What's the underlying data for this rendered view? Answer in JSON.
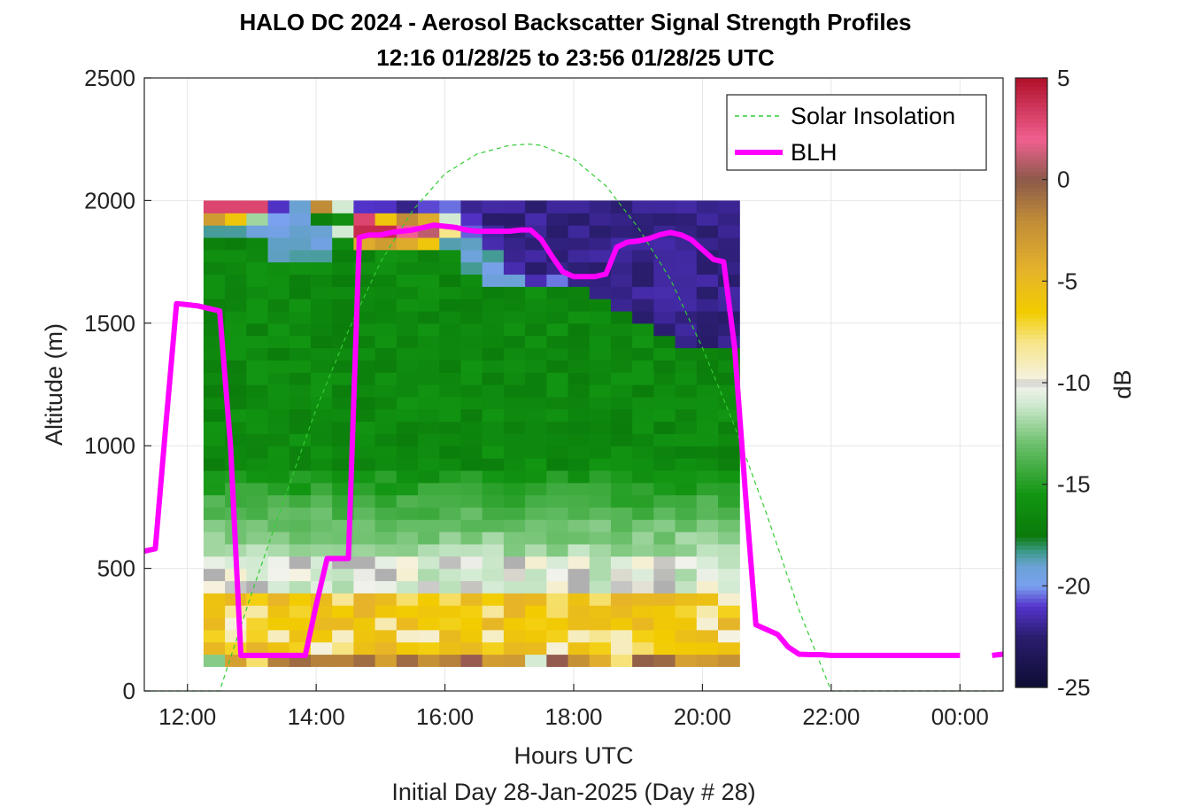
{
  "chart_data": {
    "type": "heatmap",
    "title": "HALO DC 2024 - Aerosol Backscatter Signal Strength Profiles",
    "subtitle": "12:16 01/28/25 to 23:56 01/28/25  UTC",
    "xlabel": "Hours UTC",
    "xlabel2": "Initial Day 28-Jan-2025 (Day # 28)",
    "ylabel": "Altitude (m)",
    "xlim": [
      11.33,
      24.67
    ],
    "ylim": [
      0,
      2500
    ],
    "x_ticks": [
      12,
      14,
      16,
      18,
      20,
      22,
      24
    ],
    "x_tick_labels": [
      "12:00",
      "14:00",
      "16:00",
      "18:00",
      "20:00",
      "22:00",
      "00:00"
    ],
    "y_ticks": [
      0,
      500,
      1000,
      1500,
      2000,
      2500
    ],
    "y_tick_labels": [
      "0",
      "500",
      "1000",
      "1500",
      "2000",
      "2500"
    ],
    "colorbar": {
      "label": "dB",
      "clim": [
        -25,
        5
      ],
      "ticks": [
        5,
        0,
        -5,
        -10,
        -15,
        -20,
        -25
      ],
      "tick_labels": [
        "5",
        "0",
        "-5",
        "-10",
        "-15",
        "-20",
        "-25"
      ],
      "stops": [
        {
          "v": -25,
          "c": "#0d0d33"
        },
        {
          "v": -22.5,
          "c": "#2a1d6e"
        },
        {
          "v": -21,
          "c": "#5533cc"
        },
        {
          "v": -20,
          "c": "#7aa0f0"
        },
        {
          "v": -19,
          "c": "#6aa2d4"
        },
        {
          "v": -18.3,
          "c": "#3d9a8a"
        },
        {
          "v": -17.5,
          "c": "#0a7a0a"
        },
        {
          "v": -15.5,
          "c": "#129612"
        },
        {
          "v": -13,
          "c": "#6cc06c"
        },
        {
          "v": -11,
          "c": "#d2ead2"
        },
        {
          "v": -10.15,
          "c": "#f2f2ec"
        },
        {
          "v": -10,
          "c": "#b0b0b0"
        },
        {
          "v": -9.85,
          "c": "#f5f2e2"
        },
        {
          "v": -8,
          "c": "#f7e58a"
        },
        {
          "v": -6.5,
          "c": "#f2cc00"
        },
        {
          "v": -4.5,
          "c": "#e6b32a"
        },
        {
          "v": -2,
          "c": "#c08c38"
        },
        {
          "v": 0,
          "c": "#8c5a4a"
        },
        {
          "v": 2,
          "c": "#f06090"
        },
        {
          "v": 5,
          "c": "#b0102a"
        }
      ]
    },
    "heatmap": {
      "x_start": 12.25,
      "x_step": 0.333,
      "n_cols": 25,
      "y_start": 100,
      "y_step": 50,
      "n_rows": 38,
      "value_description": "backscatter signal strength (dB)",
      "bottom_layer_top_m": [
        1850,
        1850,
        1850,
        1750,
        1750,
        1750,
        1850,
        1850,
        1850,
        1850,
        1850,
        1800,
        1700,
        1650,
        1650,
        1650,
        1650,
        1650,
        1600,
        1550,
        1500,
        1450,
        1400,
        1400,
        1400
      ],
      "green_top_m": [
        1900,
        1900,
        1950,
        1950,
        2000,
        1950,
        1850,
        1900,
        1900,
        1900,
        1950,
        1950,
        1850,
        1800,
        1700,
        1600,
        1650,
        1600,
        1500,
        1400,
        1400,
        1250,
        1200,
        1200,
        1200
      ],
      "aerosol_cap": [
        {
          "col": 0,
          "bottom_m": 1900,
          "top_m": 2050,
          "values_db": [
            -3,
            3,
            2
          ]
        },
        {
          "col": 1,
          "bottom_m": 1900,
          "top_m": 2000,
          "values_db": [
            -6,
            3
          ]
        },
        {
          "col": 2,
          "bottom_m": 1900,
          "top_m": 2050,
          "values_db": [
            -12,
            3,
            -2
          ]
        },
        {
          "col": 5,
          "bottom_m": 1850,
          "top_m": 2000,
          "values_db": [
            -19,
            -17,
            -2
          ]
        },
        {
          "col": 6,
          "bottom_m": 1850,
          "top_m": 2000,
          "values_db": [
            -11,
            -16,
            -11
          ]
        },
        {
          "col": 7,
          "bottom_m": 1800,
          "top_m": 1950,
          "values_db": [
            -4,
            4,
            3
          ]
        },
        {
          "col": 8,
          "bottom_m": 1800,
          "top_m": 1950,
          "values_db": [
            -3,
            4,
            -6
          ]
        },
        {
          "col": 9,
          "bottom_m": 1800,
          "top_m": 1950,
          "values_db": [
            -4,
            2,
            -2
          ]
        },
        {
          "col": 10,
          "bottom_m": 1800,
          "top_m": 1950,
          "values_db": [
            -6,
            1,
            -4
          ]
        },
        {
          "col": 11,
          "bottom_m": 1850,
          "top_m": 1950,
          "values_db": [
            -8,
            -11
          ]
        }
      ]
    },
    "series": [
      {
        "name": "Solar Insolation",
        "style": "dashed",
        "color": "#33cc33",
        "x": [
          11.33,
          12.5,
          13,
          13.5,
          14,
          14.5,
          15,
          15.5,
          16,
          16.5,
          17,
          17.3,
          17.5,
          18,
          18.5,
          19,
          19.5,
          20,
          20.5,
          21,
          21.5,
          22,
          22.3,
          24.67
        ],
        "y": [
          0,
          0,
          400,
          780,
          1150,
          1470,
          1750,
          1960,
          2110,
          2190,
          2225,
          2230,
          2225,
          2170,
          2060,
          1890,
          1680,
          1400,
          1080,
          720,
          330,
          0,
          0,
          0
        ]
      },
      {
        "name": "BLH",
        "style": "solid",
        "color": "#ff00ff",
        "segments": [
          {
            "x": [
              11.33,
              11.5,
              11.67,
              11.83,
              12.0,
              12.17,
              12.33,
              12.5,
              12.67,
              12.83,
              13.0,
              13.17,
              13.33,
              13.5,
              13.67,
              13.83,
              14.0,
              14.17,
              14.33,
              14.5,
              14.67,
              14.83,
              15.0,
              15.17,
              15.33,
              15.5,
              15.67,
              15.83,
              16.0,
              16.17,
              16.33,
              16.5,
              16.67,
              16.83,
              17.0,
              17.17,
              17.33,
              17.5,
              17.67,
              17.83,
              18.0,
              18.17,
              18.33,
              18.5,
              18.67,
              18.83,
              19.0,
              19.17,
              19.33,
              19.5,
              19.67,
              19.83,
              20.0,
              20.17,
              20.33,
              20.5,
              20.67,
              20.83,
              21.0,
              21.17,
              21.33,
              21.5,
              21.67,
              21.83,
              22.0,
              22.17,
              22.33,
              22.5,
              22.67,
              22.83,
              23.0,
              23.17,
              23.33,
              23.5,
              23.67,
              23.83,
              24.0
            ],
            "y": [
              570,
              580,
              1100,
              1580,
              1575,
              1570,
              1560,
              1550,
              1000,
              145,
              145,
              145,
              145,
              145,
              145,
              145,
              350,
              540,
              540,
              540,
              1850,
              1860,
              1860,
              1870,
              1875,
              1880,
              1890,
              1900,
              1895,
              1890,
              1880,
              1875,
              1875,
              1875,
              1875,
              1880,
              1880,
              1840,
              1770,
              1710,
              1690,
              1690,
              1690,
              1700,
              1810,
              1830,
              1835,
              1845,
              1860,
              1870,
              1860,
              1840,
              1800,
              1760,
              1750,
              1400,
              800,
              270,
              250,
              230,
              180,
              150,
              148,
              148,
              145,
              145,
              145,
              145,
              145,
              145,
              145,
              145,
              145,
              145,
              145,
              145,
              145
            ]
          },
          {
            "x": [
              24.5,
              24.67
            ],
            "y": [
              145,
              150
            ]
          }
        ]
      }
    ],
    "legend": {
      "placement": "top-right",
      "entries": [
        "Solar Insolation",
        "BLH"
      ]
    },
    "grid": true
  }
}
